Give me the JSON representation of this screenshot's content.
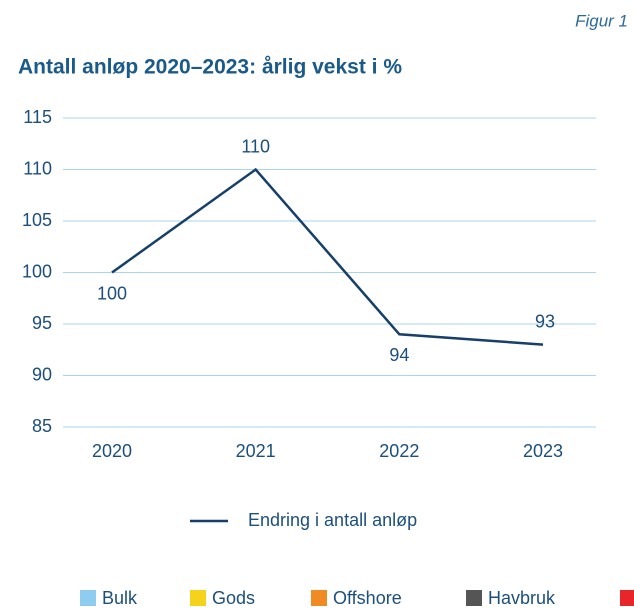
{
  "figure_label": "Figur 1",
  "chart_data": {
    "type": "line",
    "title": "Antall anløp 2020–2023: årlig vekst i %",
    "categories": [
      "2020",
      "2021",
      "2022",
      "2023"
    ],
    "series": [
      {
        "name": "Endring i antall anløp",
        "color": "#163f6a",
        "values": [
          100,
          110,
          94,
          93
        ]
      }
    ],
    "ylim": [
      85,
      115
    ],
    "yticks": [
      85,
      90,
      95,
      100,
      105,
      110,
      115
    ],
    "grid": true
  },
  "other_legend": [
    {
      "name": "Bulk",
      "color": "#8ecdf0"
    },
    {
      "name": "Gods",
      "color": "#f5d31c"
    },
    {
      "name": "Offshore",
      "color": "#f08a24"
    },
    {
      "name": "Havbruk",
      "color": "#555555"
    }
  ]
}
